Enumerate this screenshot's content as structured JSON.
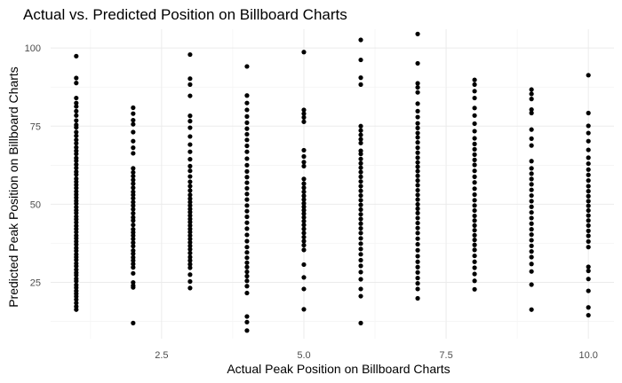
{
  "chart_data": {
    "type": "scatter",
    "title": "Actual vs. Predicted Position on Billboard Charts",
    "xlabel": "Actual Peak Position on Billboard Charts",
    "ylabel": "Predicted Peak Position on Billboard Charts",
    "xlim": [
      0.55,
      10.45
    ],
    "ylim": [
      7,
      106
    ],
    "x_ticks": [
      2.5,
      5.0,
      7.5,
      10.0
    ],
    "x_tick_labels": [
      "2.5",
      "5.0",
      "7.5",
      "10.0"
    ],
    "y_ticks": [
      25,
      50,
      75,
      100
    ],
    "y_tick_labels": [
      "25",
      "50",
      "75",
      "100"
    ],
    "grid": true,
    "legend": "none",
    "point_color": "#000000",
    "series": [
      {
        "x": 1,
        "values": [
          97.4,
          90.4,
          88.8,
          84,
          82.4,
          81.3,
          79.8,
          78.4,
          76.8,
          75.4,
          74.6,
          73.1,
          71.9,
          70.6,
          69.5,
          68.2,
          67.1,
          66.1,
          64.8,
          63.9,
          62.7,
          61.6,
          60.4,
          59.5,
          58.2,
          57.2,
          56.2,
          55.2,
          54.1,
          53.1,
          52.1,
          51.1,
          50.2,
          49.1,
          48.1,
          47.2,
          46.1,
          45.2,
          44.2,
          43.1,
          42.1,
          41.1,
          40,
          39.1,
          38.1,
          37.1,
          36,
          35.1,
          34,
          33.1,
          32.2,
          31.1,
          30.2,
          29.1,
          28.1,
          27.3,
          26.2,
          25.4,
          24.2,
          23.3,
          22.3,
          21.4,
          20.5,
          19.5,
          18.4,
          17.3,
          16.3
        ]
      },
      {
        "x": 2,
        "values": [
          80.9,
          79,
          76.9,
          75.6,
          73.1,
          70.2,
          68.1,
          66.3,
          61.5,
          60.2,
          59,
          57.8,
          56.6,
          55.3,
          54,
          53,
          51.9,
          50.7,
          49.6,
          48.4,
          47.1,
          45.8,
          44.8,
          43.4,
          42,
          41,
          40,
          38.9,
          37.7,
          36.6,
          35.2,
          34.2,
          33,
          32,
          30.9,
          29.8,
          27.9,
          25,
          24,
          23.4,
          12
        ]
      },
      {
        "x": 3,
        "values": [
          97.9,
          90.2,
          88.3,
          84.7,
          78.3,
          76.6,
          74.5,
          71.7,
          69.1,
          66.8,
          64.4,
          62.2,
          60.7,
          58.9,
          57.2,
          55.8,
          54.4,
          53,
          51.8,
          50.7,
          49.6,
          48.5,
          47.5,
          46.4,
          45.3,
          44.3,
          43.2,
          42.1,
          41.1,
          40,
          38.9,
          37.8,
          36.7,
          35.6,
          34.4,
          33.1,
          32,
          30.8,
          29.7,
          27.5,
          25.3,
          23.2
        ]
      },
      {
        "x": 4,
        "values": [
          94.1,
          84.8,
          82.4,
          80.2,
          78.1,
          76.1,
          74.2,
          72.4,
          70.6,
          68.7,
          66.8,
          64.6,
          62.5,
          60.5,
          58.7,
          56.9,
          55.1,
          53.3,
          51.5,
          49.6,
          47.8,
          46,
          44.1,
          42.2,
          40.2,
          38.2,
          36.3,
          34.6,
          32.9,
          31.3,
          29.9,
          28.4,
          27,
          25.5,
          23.8,
          21.6,
          14.1,
          12.3,
          9.6
        ]
      },
      {
        "x": 5,
        "values": [
          98.7,
          80.2,
          79,
          77.8,
          76.4,
          67.3,
          65.3,
          63.5,
          62.2,
          58.1,
          56.6,
          55.3,
          54,
          52.7,
          51.5,
          50.3,
          49.2,
          48.1,
          47,
          45.8,
          44.6,
          43.4,
          42.1,
          40.8,
          39.5,
          38.2,
          36.9,
          35.4,
          30.7,
          26.6,
          22.9,
          16.4
        ]
      },
      {
        "x": 6,
        "values": [
          102.6,
          96.2,
          90.5,
          88.3,
          75,
          73.6,
          72.2,
          70.8,
          69.6,
          67.1,
          66.1,
          64.5,
          63.1,
          61.7,
          60.3,
          58.8,
          57.3,
          55.8,
          54.3,
          52.8,
          51.3,
          49.8,
          48.3,
          46.8,
          45.3,
          43.8,
          42.3,
          40.8,
          39.1,
          37.4,
          35.7,
          34,
          32.1,
          30.3,
          28.3,
          26,
          22.9,
          20.6,
          12
        ]
      },
      {
        "x": 7,
        "values": [
          104.5,
          95.1,
          88.7,
          87.4,
          85.8,
          82.2,
          79.8,
          77.9,
          75.9,
          74.4,
          72.8,
          71.4,
          69.8,
          68.1,
          66.5,
          64.9,
          63.4,
          62,
          60.6,
          59.1,
          57.6,
          56.1,
          54.5,
          53,
          51.5,
          50,
          48.6,
          47.2,
          45.6,
          44,
          42.4,
          40.8,
          39,
          37.2,
          35.3,
          33.4,
          31.6,
          29.9,
          28.2,
          26.4,
          24.7,
          22.9,
          19.9
        ]
      },
      {
        "x": 8,
        "values": [
          89.8,
          88.3,
          86.2,
          84,
          80.8,
          78.4,
          75.8,
          73.4,
          71.1,
          69.3,
          67.6,
          65.9,
          64.2,
          62.6,
          60.7,
          58.8,
          57,
          55,
          53.1,
          51.3,
          49.6,
          48,
          46.3,
          44.8,
          43.2,
          41.7,
          40.1,
          38.6,
          37,
          35.4,
          33.5,
          31.6,
          29.7,
          27.7,
          25.5,
          22.8
        ]
      },
      {
        "x": 9,
        "values": [
          86.7,
          85.3,
          83.7,
          80.3,
          79.2,
          73.9,
          71,
          68.8,
          63.8,
          61.5,
          59.8,
          58.1,
          56.4,
          54.6,
          52.8,
          51,
          49.2,
          47.4,
          45.6,
          43.8,
          42,
          40.3,
          38.5,
          36.7,
          34.9,
          33.1,
          30.9,
          28.5,
          24.3,
          16.3
        ]
      },
      {
        "x": 10,
        "values": [
          91.3,
          79.2,
          75.1,
          72.8,
          70.2,
          67.4,
          64.9,
          63,
          61.1,
          59.4,
          57.6,
          55.8,
          54.2,
          52.6,
          51,
          49.5,
          48,
          46.4,
          44.8,
          43.2,
          41.5,
          39.9,
          38.1,
          36.3,
          30,
          28.7,
          26.1,
          22.3,
          17,
          14.5
        ]
      }
    ]
  }
}
